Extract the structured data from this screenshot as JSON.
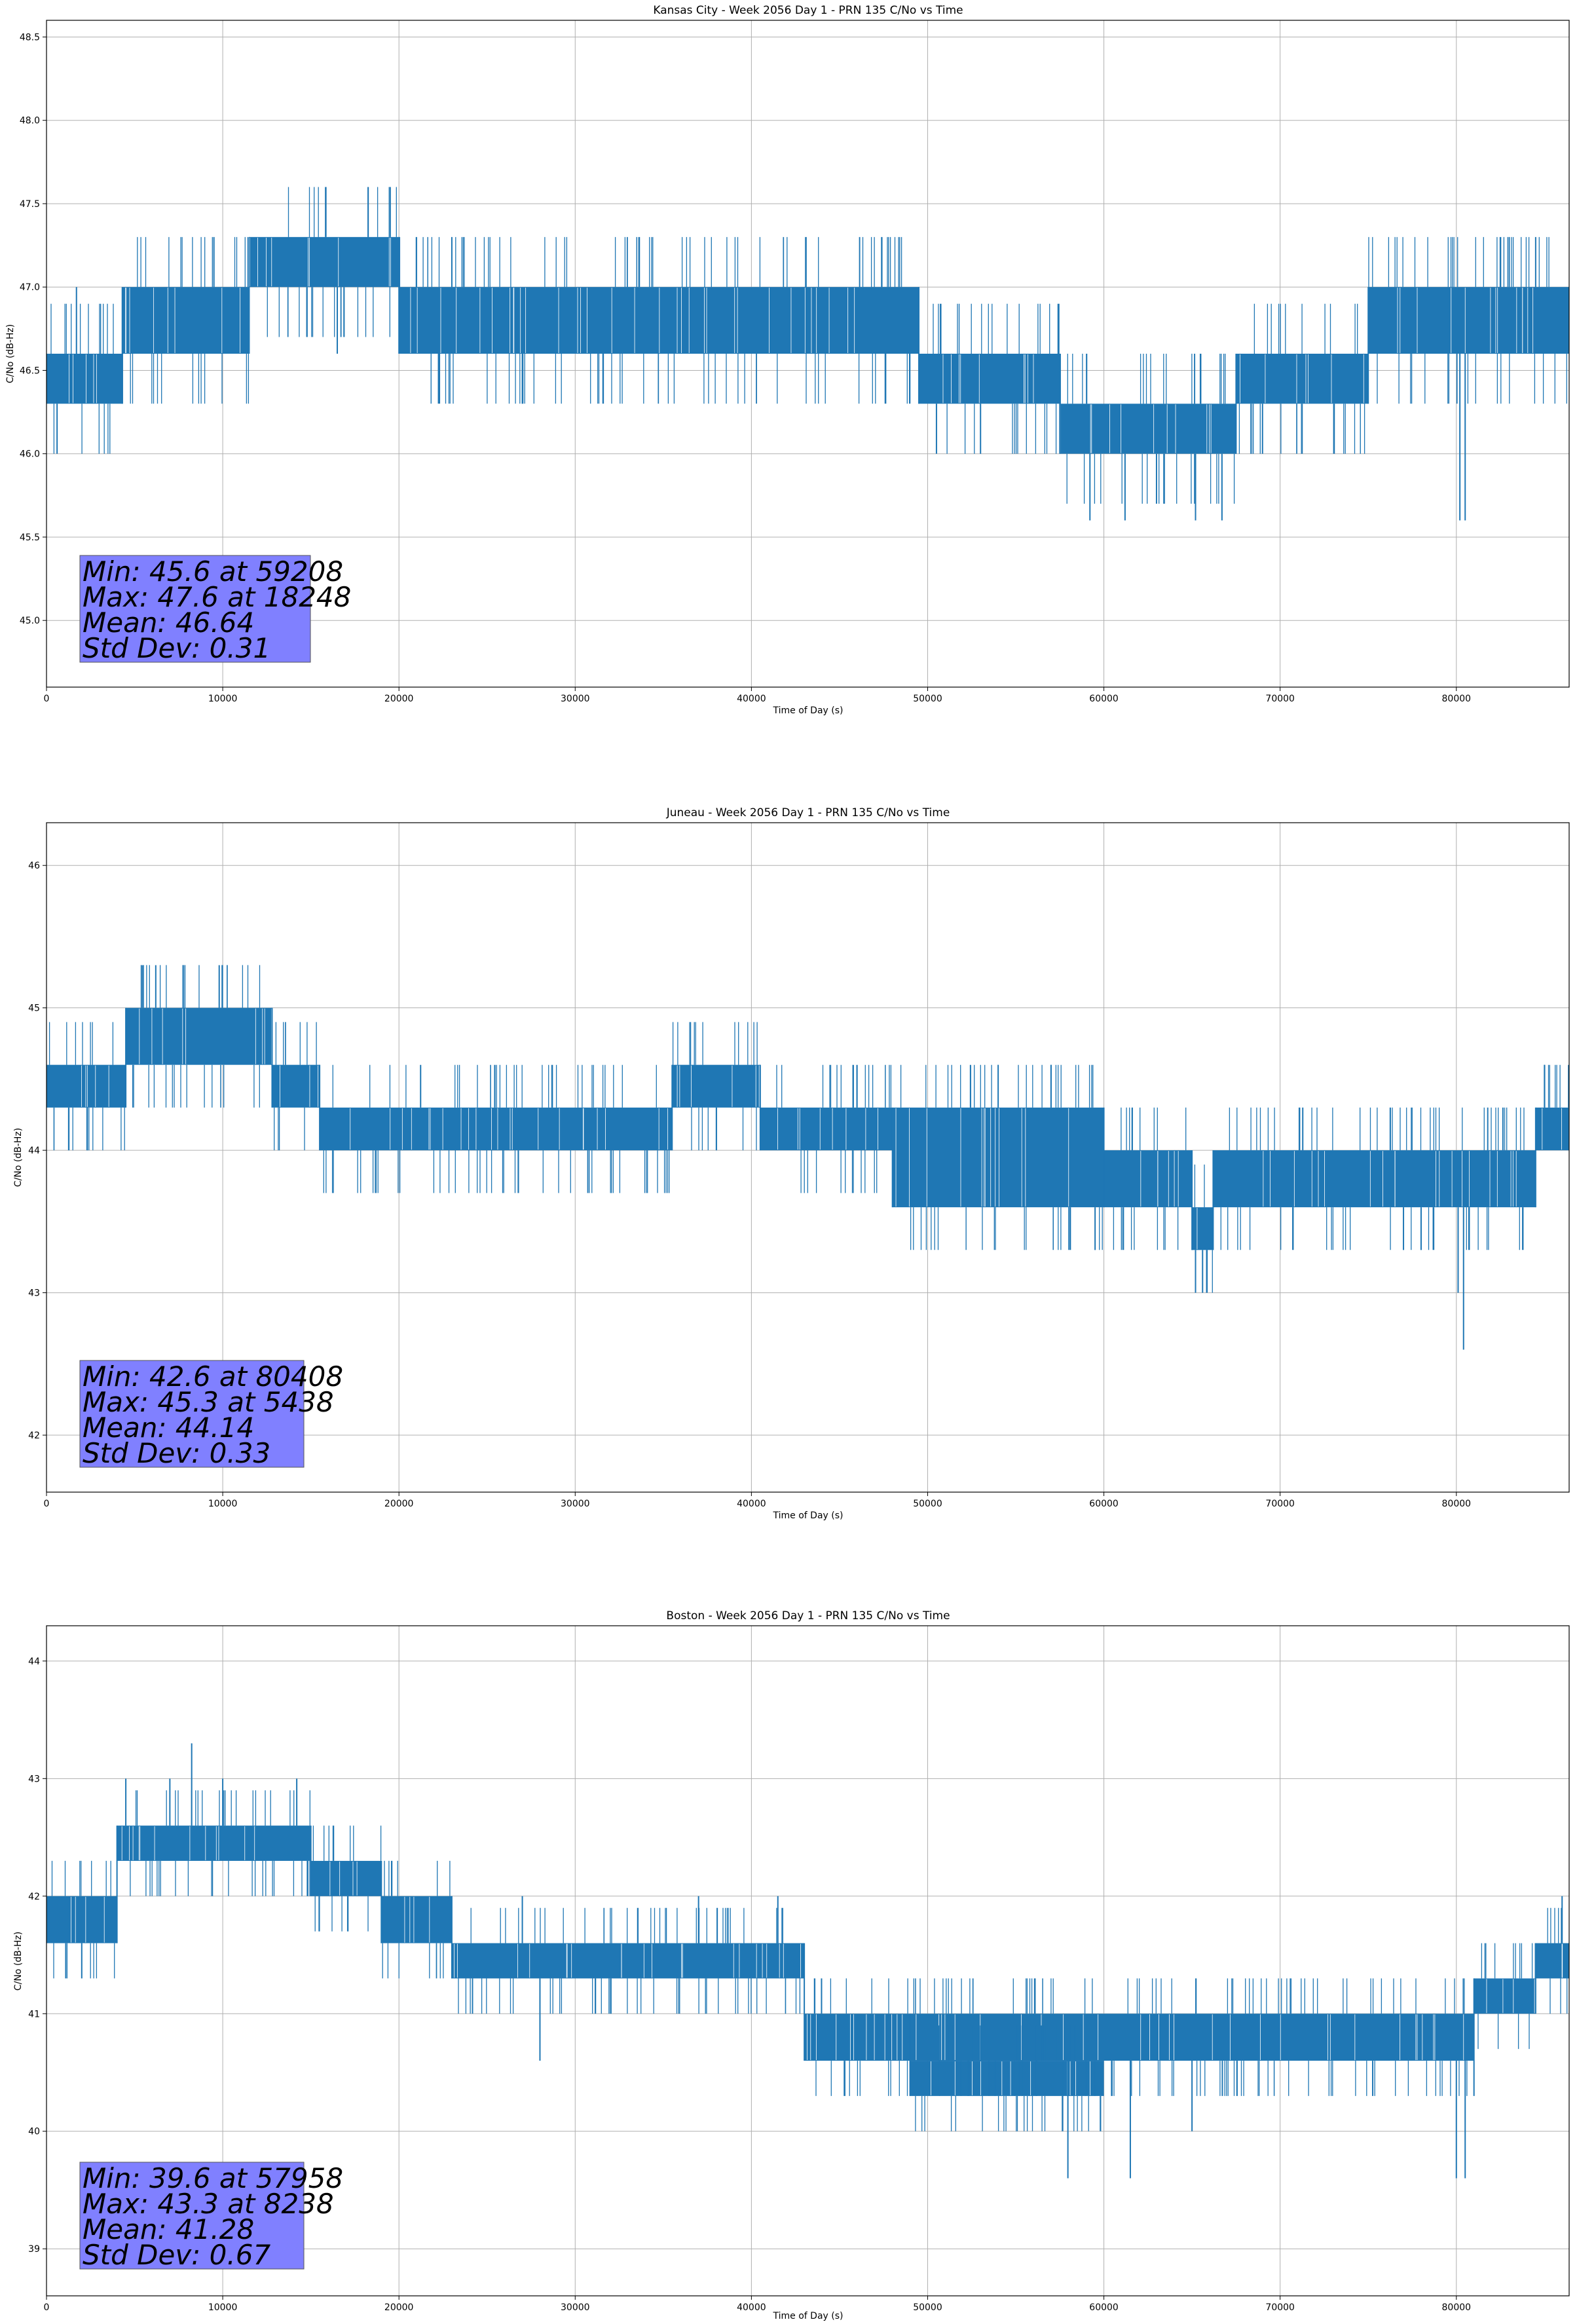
{
  "chart_data": [
    {
      "type": "line",
      "title": "Kansas City - Week 2056 Day 1 - PRN 135 C/No vs Time",
      "xlabel": "Time of Day (s)",
      "ylabel": "C/No (dB-Hz)",
      "xlim": [
        0,
        86400
      ],
      "ylim": [
        44.6,
        48.6
      ],
      "xticks": [
        0,
        10000,
        20000,
        30000,
        40000,
        50000,
        60000,
        70000,
        80000
      ],
      "yticks": [
        45.0,
        45.5,
        46.0,
        46.5,
        47.0,
        47.5,
        48.0,
        48.5
      ],
      "ytick_decimals": 1,
      "grid": true,
      "series_color": "#1f77b4",
      "stats": [
        "Min: 45.6 at 59208",
        "Max: 47.6 at 18248",
        "Mean: 46.64",
        "Std Dev: 0.31"
      ],
      "stats_box_color": "#8080ff",
      "segments": [
        {
          "x0": 0,
          "x1": 4300,
          "lo": 46.3,
          "hi": 46.6
        },
        {
          "x0": 4300,
          "x1": 11500,
          "lo": 46.6,
          "hi": 47.0
        },
        {
          "x0": 11500,
          "x1": 20000,
          "lo": 47.0,
          "hi": 47.3
        },
        {
          "x0": 20000,
          "x1": 49500,
          "lo": 46.6,
          "hi": 47.0
        },
        {
          "x0": 49500,
          "x1": 57500,
          "lo": 46.3,
          "hi": 46.6
        },
        {
          "x0": 57500,
          "x1": 67500,
          "lo": 46.0,
          "hi": 46.3
        },
        {
          "x0": 67500,
          "x1": 75000,
          "lo": 46.3,
          "hi": 46.6
        },
        {
          "x0": 75000,
          "x1": 86400,
          "lo": 46.6,
          "hi": 47.0
        }
      ],
      "spikes": [
        {
          "x": 600,
          "y": 46.0
        },
        {
          "x": 1700,
          "y": 47.0
        },
        {
          "x": 9500,
          "y": 47.3
        },
        {
          "x": 18248,
          "y": 47.6
        },
        {
          "x": 23000,
          "y": 47.3
        },
        {
          "x": 16500,
          "y": 46.6
        },
        {
          "x": 50500,
          "y": 46.0
        },
        {
          "x": 53000,
          "y": 46.0
        },
        {
          "x": 59208,
          "y": 45.6
        },
        {
          "x": 61200,
          "y": 45.6
        },
        {
          "x": 65200,
          "y": 45.6
        },
        {
          "x": 66700,
          "y": 45.6
        },
        {
          "x": 69000,
          "y": 46.0
        },
        {
          "x": 80200,
          "y": 45.6
        },
        {
          "x": 80500,
          "y": 45.6
        },
        {
          "x": 83000,
          "y": 47.3
        },
        {
          "x": 84500,
          "y": 47.3
        },
        {
          "x": 27000,
          "y": 46.3
        }
      ]
    },
    {
      "type": "line",
      "title": "Juneau - Week 2056 Day 1 - PRN 135 C/No vs Time",
      "xlabel": "Time of Day (s)",
      "ylabel": "C/No (dB-Hz)",
      "xlim": [
        0,
        86400
      ],
      "ylim": [
        41.6,
        46.3
      ],
      "xticks": [
        0,
        10000,
        20000,
        30000,
        40000,
        50000,
        60000,
        70000,
        80000
      ],
      "yticks": [
        42,
        43,
        44,
        45,
        46
      ],
      "ytick_decimals": 0,
      "grid": true,
      "series_color": "#1f77b4",
      "stats": [
        "Min: 42.6 at 80408",
        "Max: 45.3 at 5438",
        "Mean: 44.14",
        "Std Dev: 0.33"
      ],
      "stats_box_color": "#8080ff",
      "segments": [
        {
          "x0": 0,
          "x1": 4500,
          "lo": 44.3,
          "hi": 44.6
        },
        {
          "x0": 4500,
          "x1": 12800,
          "lo": 44.6,
          "hi": 45.0
        },
        {
          "x0": 12800,
          "x1": 15500,
          "lo": 44.3,
          "hi": 44.6
        },
        {
          "x0": 15500,
          "x1": 35500,
          "lo": 44.0,
          "hi": 44.3
        },
        {
          "x0": 35500,
          "x1": 40500,
          "lo": 44.3,
          "hi": 44.6
        },
        {
          "x0": 40500,
          "x1": 48000,
          "lo": 44.0,
          "hi": 44.3
        },
        {
          "x0": 48000,
          "x1": 60000,
          "lo": 43.6,
          "hi": 44.3
        },
        {
          "x0": 60000,
          "x1": 65000,
          "lo": 43.6,
          "hi": 44.0
        },
        {
          "x0": 65000,
          "x1": 66200,
          "lo": 43.3,
          "hi": 43.6
        },
        {
          "x0": 66200,
          "x1": 84500,
          "lo": 43.6,
          "hi": 44.0
        },
        {
          "x0": 84500,
          "x1": 86400,
          "lo": 44.0,
          "hi": 44.3
        }
      ],
      "spikes": [
        {
          "x": 5438,
          "y": 45.3
        },
        {
          "x": 6200,
          "y": 45.3
        },
        {
          "x": 9800,
          "y": 45.3
        },
        {
          "x": 65200,
          "y": 43.0
        },
        {
          "x": 65600,
          "y": 43.0
        },
        {
          "x": 80408,
          "y": 42.6
        },
        {
          "x": 80100,
          "y": 43.0
        },
        {
          "x": 59500,
          "y": 43.3
        },
        {
          "x": 77000,
          "y": 43.3
        },
        {
          "x": 78000,
          "y": 43.3
        },
        {
          "x": 54000,
          "y": 44.6
        },
        {
          "x": 57000,
          "y": 44.6
        },
        {
          "x": 85000,
          "y": 44.6
        },
        {
          "x": 2300,
          "y": 44.0
        }
      ]
    },
    {
      "type": "line",
      "title": "Boston - Week 2056 Day 1 - PRN 135 C/No vs Time",
      "xlabel": "Time of Day (s)",
      "ylabel": "C/No (dB-Hz)",
      "xlim": [
        0,
        86400
      ],
      "ylim": [
        38.6,
        44.3
      ],
      "xticks": [
        0,
        10000,
        20000,
        30000,
        40000,
        50000,
        60000,
        70000,
        80000
      ],
      "yticks": [
        39,
        40,
        41,
        42,
        43,
        44
      ],
      "ytick_decimals": 0,
      "grid": true,
      "series_color": "#1f77b4",
      "stats": [
        "Min: 39.6 at 57958",
        "Max: 43.3 at 8238",
        "Mean: 41.28",
        "Std Dev: 0.67"
      ],
      "stats_box_color": "#8080ff",
      "segments": [
        {
          "x0": 0,
          "x1": 4000,
          "lo": 41.6,
          "hi": 42.0
        },
        {
          "x0": 4000,
          "x1": 15000,
          "lo": 42.3,
          "hi": 42.6
        },
        {
          "x0": 15000,
          "x1": 19000,
          "lo": 42.0,
          "hi": 42.3
        },
        {
          "x0": 19000,
          "x1": 23000,
          "lo": 41.6,
          "hi": 42.0
        },
        {
          "x0": 23000,
          "x1": 43000,
          "lo": 41.3,
          "hi": 41.6
        },
        {
          "x0": 43000,
          "x1": 81000,
          "lo": 40.6,
          "hi": 41.0
        },
        {
          "x0": 49000,
          "x1": 60000,
          "lo": 40.3,
          "hi": 40.6
        },
        {
          "x0": 81000,
          "x1": 84500,
          "lo": 41.0,
          "hi": 41.3
        },
        {
          "x0": 84500,
          "x1": 86400,
          "lo": 41.3,
          "hi": 41.6
        }
      ],
      "spikes": [
        {
          "x": 8238,
          "y": 43.3
        },
        {
          "x": 4500,
          "y": 43.0
        },
        {
          "x": 7000,
          "y": 43.0
        },
        {
          "x": 10000,
          "y": 43.0
        },
        {
          "x": 14200,
          "y": 43.0
        },
        {
          "x": 57958,
          "y": 39.6
        },
        {
          "x": 61500,
          "y": 39.6
        },
        {
          "x": 80000,
          "y": 39.6
        },
        {
          "x": 80500,
          "y": 39.6
        },
        {
          "x": 86000,
          "y": 42.0
        },
        {
          "x": 2000,
          "y": 41.3
        },
        {
          "x": 27000,
          "y": 42.0
        },
        {
          "x": 37000,
          "y": 42.0
        },
        {
          "x": 41500,
          "y": 42.0
        },
        {
          "x": 28000,
          "y": 40.6
        },
        {
          "x": 65000,
          "y": 40.0
        }
      ]
    }
  ]
}
